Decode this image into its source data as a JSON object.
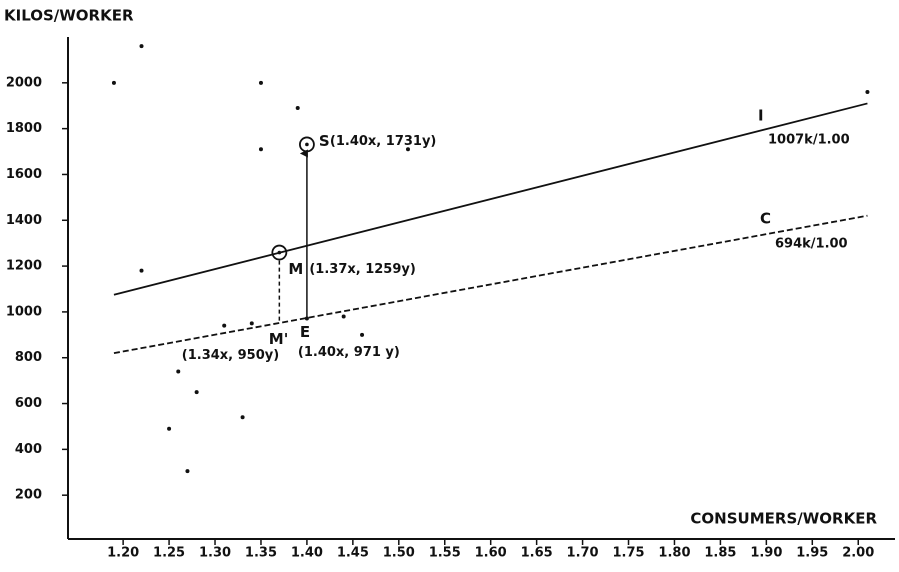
{
  "chart_data": {
    "type": "scatter",
    "ylabel": "KILOS/WORKER",
    "xlabel": "CONSUMERS/WORKER",
    "xlim": [
      1.14,
      2.04
    ],
    "ylim": [
      0,
      2200
    ],
    "xticks": [
      {
        "value": 1.2,
        "label": "1.20"
      },
      1.25,
      {
        "value": 1.3,
        "label": "1.30"
      },
      1.35,
      {
        "value": 1.4,
        "label": "1.40"
      },
      1.45,
      {
        "value": 1.5,
        "label": "1.50"
      },
      1.55,
      {
        "value": 1.6,
        "label": "1.60"
      },
      1.65,
      {
        "value": 1.7,
        "label": "1.70"
      },
      1.75,
      {
        "value": 1.8,
        "label": "1.80"
      },
      1.85,
      {
        "value": 1.9,
        "label": "1.90"
      },
      1.95,
      {
        "value": 2.0,
        "label": "2.00"
      }
    ],
    "yticks": [
      200,
      400,
      600,
      800,
      1000,
      1200,
      1400,
      1600,
      1800,
      2000
    ],
    "color": "#111111",
    "x": [
      1.19,
      1.22,
      1.22,
      1.35,
      1.39,
      1.35,
      1.51,
      1.31,
      1.44,
      1.46,
      1.26,
      1.28,
      1.25,
      1.33,
      1.27,
      2.01
    ],
    "values": [
      2000,
      2160,
      1180,
      2000,
      1890,
      1710,
      1710,
      940,
      980,
      900,
      740,
      650,
      490,
      540,
      305,
      1960
    ],
    "lines": [
      {
        "name": "I",
        "label": "1007k/1.00",
        "dashed": false,
        "x": [
          1.19,
          2.01
        ],
        "values": [
          1075,
          1910
        ]
      },
      {
        "name": "C",
        "label": "694k/1.00",
        "dashed": true,
        "x": [
          1.19,
          2.01
        ],
        "values": [
          820,
          1420
        ]
      }
    ],
    "annotations": [
      {
        "name": "S",
        "label": "(1.40x, 1731y)",
        "x": 1.4,
        "y": 1731,
        "circled": true
      },
      {
        "name": "M",
        "label": "(1.37x, 1259y)",
        "x": 1.37,
        "y": 1259,
        "circled": true
      },
      {
        "name": "M'",
        "label": "(1.34x, 950y)",
        "x": 1.34,
        "y": 950,
        "circled": false
      },
      {
        "name": "E",
        "label": "(1.40x, 971 y)",
        "x": 1.4,
        "y": 971,
        "circled": false
      }
    ]
  }
}
